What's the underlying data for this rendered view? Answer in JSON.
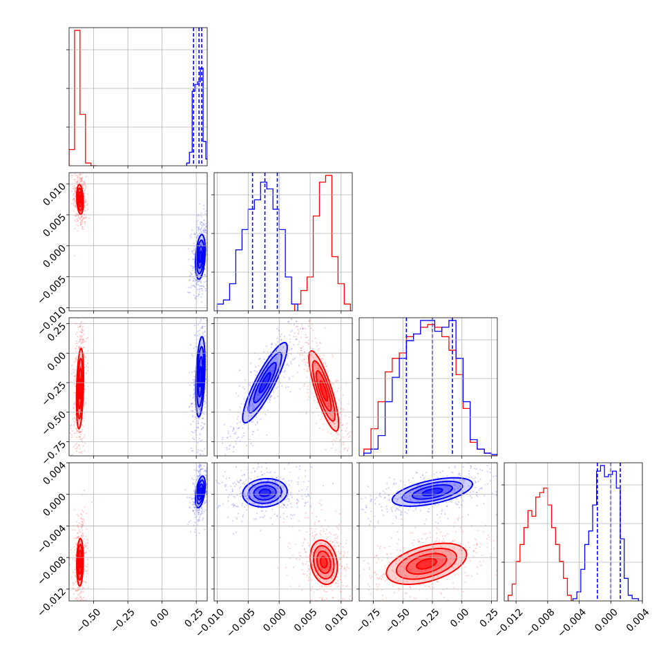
{
  "chart_data": {
    "type": "corner",
    "description_free": true,
    "dimensions": 4,
    "series": [
      {
        "color": "#ff0000"
      },
      {
        "color": "#0000ff"
      }
    ],
    "axes": [
      {
        "range": [
          -0.68,
          0.33
        ],
        "ticks": [
          -0.5,
          -0.25,
          0.0,
          0.25
        ],
        "tick_labels": [
          "−0.50",
          "−0.25",
          "0.00",
          "0.25"
        ]
      },
      {
        "range": [
          -0.0105,
          0.0118
        ],
        "ticks": [
          -0.01,
          -0.005,
          0.0,
          0.005,
          0.01
        ],
        "tick_labels": [
          "−0.010",
          "−0.005",
          "0.000",
          "0.005",
          "0.010"
        ]
      },
      {
        "range": [
          -0.87,
          0.3
        ],
        "ticks": [
          -0.75,
          -0.5,
          -0.25,
          0.0,
          0.25
        ],
        "tick_labels": [
          "−0.75",
          "−0.50",
          "−0.25",
          "0.00",
          "0.25"
        ]
      },
      {
        "range": [
          -0.0135,
          0.004
        ],
        "ticks": [
          -0.012,
          -0.008,
          -0.004,
          0.0,
          0.004
        ],
        "tick_labels": [
          "−0.012",
          "−0.008",
          "−0.004",
          "0.000",
          "0.004"
        ]
      }
    ],
    "marginals": [
      {
        "dim": 0,
        "red": [
          [
            -0.68,
            -0.64,
            0.12
          ],
          [
            -0.64,
            -0.6,
            1.0
          ],
          [
            -0.6,
            -0.56,
            0.38
          ],
          [
            -0.56,
            -0.52,
            0.02
          ],
          [
            -0.52,
            -0.48,
            0.0
          ]
        ],
        "blue": [
          [
            0.18,
            0.2,
            0.02
          ],
          [
            0.2,
            0.22,
            0.1
          ],
          [
            0.22,
            0.24,
            0.55
          ],
          [
            0.24,
            0.26,
            0.6
          ],
          [
            0.26,
            0.28,
            0.62
          ],
          [
            0.28,
            0.3,
            0.72
          ],
          [
            0.3,
            0.32,
            0.18
          ],
          [
            0.32,
            0.34,
            0.05
          ]
        ],
        "blue_quantiles": [
          0.23,
          0.27,
          0.29
        ]
      },
      {
        "dim": 1,
        "red": [
          [
            0.0025,
            0.0035,
            0.05
          ],
          [
            0.0035,
            0.0045,
            0.15
          ],
          [
            0.0045,
            0.0055,
            0.25
          ],
          [
            0.0055,
            0.0065,
            0.7
          ],
          [
            0.0065,
            0.0075,
            0.95
          ],
          [
            0.0075,
            0.0085,
            1.0
          ],
          [
            0.0085,
            0.0095,
            0.4
          ],
          [
            0.0095,
            0.0105,
            0.2
          ],
          [
            0.0105,
            0.0115,
            0.05
          ]
        ],
        "blue": [
          [
            -0.01,
            -0.009,
            0.05
          ],
          [
            -0.009,
            -0.008,
            0.08
          ],
          [
            -0.008,
            -0.007,
            0.2
          ],
          [
            -0.007,
            -0.006,
            0.45
          ],
          [
            -0.006,
            -0.005,
            0.6
          ],
          [
            -0.005,
            -0.004,
            0.75
          ],
          [
            -0.004,
            -0.003,
            0.82
          ],
          [
            -0.003,
            -0.002,
            0.95
          ],
          [
            -0.002,
            -0.001,
            0.9
          ],
          [
            -0.001,
            0.0,
            0.75
          ],
          [
            0.0,
            0.001,
            0.6
          ],
          [
            0.001,
            0.002,
            0.25
          ],
          [
            0.002,
            0.003,
            0.05
          ]
        ],
        "blue_quantiles": [
          -0.0043,
          -0.0023,
          -0.0003
        ]
      },
      {
        "dim": 2,
        "red": [
          [
            -0.83,
            -0.77,
            0.05
          ],
          [
            -0.77,
            -0.71,
            0.2
          ],
          [
            -0.71,
            -0.65,
            0.4
          ],
          [
            -0.65,
            -0.59,
            0.62
          ],
          [
            -0.59,
            -0.53,
            0.72
          ],
          [
            -0.53,
            -0.47,
            0.76
          ],
          [
            -0.47,
            -0.41,
            0.88
          ],
          [
            -0.41,
            -0.35,
            0.9
          ],
          [
            -0.35,
            -0.29,
            0.95
          ],
          [
            -0.29,
            -0.23,
            0.97
          ],
          [
            -0.23,
            -0.17,
            0.95
          ],
          [
            -0.17,
            -0.11,
            0.88
          ],
          [
            -0.11,
            -0.05,
            0.78
          ],
          [
            -0.05,
            0.01,
            0.6
          ],
          [
            0.01,
            0.07,
            0.35
          ],
          [
            0.07,
            0.13,
            0.1
          ],
          [
            0.13,
            0.19,
            0.05
          ],
          [
            0.19,
            0.25,
            0.02
          ],
          [
            0.25,
            0.3,
            0.0
          ]
        ],
        "blue": [
          [
            -0.83,
            -0.77,
            0.02
          ],
          [
            -0.77,
            -0.71,
            0.05
          ],
          [
            -0.71,
            -0.65,
            0.15
          ],
          [
            -0.65,
            -0.59,
            0.4
          ],
          [
            -0.59,
            -0.53,
            0.58
          ],
          [
            -0.53,
            -0.47,
            0.72
          ],
          [
            -0.47,
            -0.41,
            0.85
          ],
          [
            -0.41,
            -0.35,
            0.9
          ],
          [
            -0.35,
            -0.29,
            1.0
          ],
          [
            -0.29,
            -0.23,
            1.0
          ],
          [
            -0.23,
            -0.17,
            0.92
          ],
          [
            -0.17,
            -0.11,
            0.95
          ],
          [
            -0.11,
            -0.05,
            1.0
          ],
          [
            -0.05,
            0.01,
            0.72
          ],
          [
            0.01,
            0.07,
            0.4
          ],
          [
            0.07,
            0.13,
            0.12
          ],
          [
            0.13,
            0.19,
            0.05
          ],
          [
            0.19,
            0.25,
            0.02
          ],
          [
            0.25,
            0.3,
            0.01
          ]
        ],
        "blue_quantiles": [
          -0.47,
          -0.25,
          -0.08
        ]
      },
      {
        "dim": 3,
        "red": [
          [
            -0.013,
            -0.0125,
            0.05
          ],
          [
            -0.0125,
            -0.012,
            0.15
          ],
          [
            -0.012,
            -0.0115,
            0.35
          ],
          [
            -0.0115,
            -0.011,
            0.5
          ],
          [
            -0.011,
            -0.0105,
            0.65
          ],
          [
            -0.0105,
            -0.01,
            0.8
          ],
          [
            -0.01,
            -0.0095,
            0.75
          ],
          [
            -0.0095,
            -0.009,
            0.92
          ],
          [
            -0.009,
            -0.0085,
            0.96
          ],
          [
            -0.0085,
            -0.008,
            1.0
          ],
          [
            -0.008,
            -0.0075,
            0.85
          ],
          [
            -0.0075,
            -0.007,
            0.65
          ],
          [
            -0.007,
            -0.0065,
            0.5
          ],
          [
            -0.0065,
            -0.006,
            0.35
          ],
          [
            -0.006,
            -0.0055,
            0.2
          ],
          [
            -0.0055,
            -0.005,
            0.05
          ]
        ],
        "blue": [
          [
            -0.0048,
            -0.0043,
            0.02
          ],
          [
            -0.0043,
            -0.0038,
            0.08
          ],
          [
            -0.0038,
            -0.0033,
            0.28
          ],
          [
            -0.0033,
            -0.0028,
            0.5
          ],
          [
            -0.0028,
            -0.0023,
            0.62
          ],
          [
            -0.0023,
            -0.0018,
            0.85
          ],
          [
            -0.0018,
            -0.0013,
            1.15
          ],
          [
            -0.0013,
            -0.0008,
            1.2
          ],
          [
            -0.0008,
            -0.0003,
            1.1
          ],
          [
            -0.0003,
            0.0002,
            1.12
          ],
          [
            0.0002,
            0.0007,
            1.15
          ],
          [
            0.0007,
            0.0012,
            1.0
          ],
          [
            0.0012,
            0.0017,
            0.55
          ],
          [
            0.0017,
            0.0022,
            0.2
          ],
          [
            0.0022,
            0.0027,
            0.05
          ],
          [
            0.0027,
            0.0035,
            0.02
          ]
        ],
        "blue_quantiles": [
          -0.0017,
          0.0,
          0.0012
        ]
      }
    ],
    "joint": [
      {
        "row": 1,
        "col": 0,
        "red": {
          "mx": -0.6,
          "my": 0.0075,
          "sx": 0.012,
          "sy": 0.0012,
          "rho": -0.2
        },
        "blue": {
          "mx": 0.28,
          "my": -0.0018,
          "sx": 0.018,
          "sy": 0.0018,
          "rho": 0.3
        }
      },
      {
        "row": 2,
        "col": 0,
        "red": {
          "mx": -0.6,
          "my": -0.3,
          "sx": 0.013,
          "sy": 0.17,
          "rho": 0.3
        },
        "blue": {
          "mx": 0.28,
          "my": -0.2,
          "sx": 0.017,
          "sy": 0.17,
          "rho": 0.35
        }
      },
      {
        "row": 2,
        "col": 1,
        "red": {
          "mx": 0.0072,
          "my": -0.32,
          "sx": 0.0012,
          "sy": 0.17,
          "rho": -0.82
        },
        "blue": {
          "mx": -0.0023,
          "my": -0.25,
          "sx": 0.0018,
          "sy": 0.17,
          "rho": 0.88
        }
      },
      {
        "row": 3,
        "col": 0,
        "red": {
          "mx": -0.6,
          "my": -0.0086,
          "sx": 0.012,
          "sy": 0.0015,
          "rho": 0.1
        },
        "blue": {
          "mx": 0.28,
          "my": 0.0003,
          "sx": 0.018,
          "sy": 0.001,
          "rho": 0.45
        }
      },
      {
        "row": 3,
        "col": 1,
        "red": {
          "mx": 0.0072,
          "my": -0.0086,
          "sx": 0.0011,
          "sy": 0.0014,
          "rho": -0.2
        },
        "blue": {
          "mx": -0.0023,
          "my": 0.0002,
          "sx": 0.0018,
          "sy": 0.0009,
          "rho": 0.1
        }
      },
      {
        "row": 3,
        "col": 2,
        "red": {
          "mx": -0.3,
          "my": -0.0088,
          "sx": 0.17,
          "sy": 0.0013,
          "rho": 0.45
        },
        "blue": {
          "mx": -0.25,
          "my": 0.0003,
          "sx": 0.17,
          "sy": 0.0009,
          "rho": 0.55
        }
      }
    ]
  }
}
